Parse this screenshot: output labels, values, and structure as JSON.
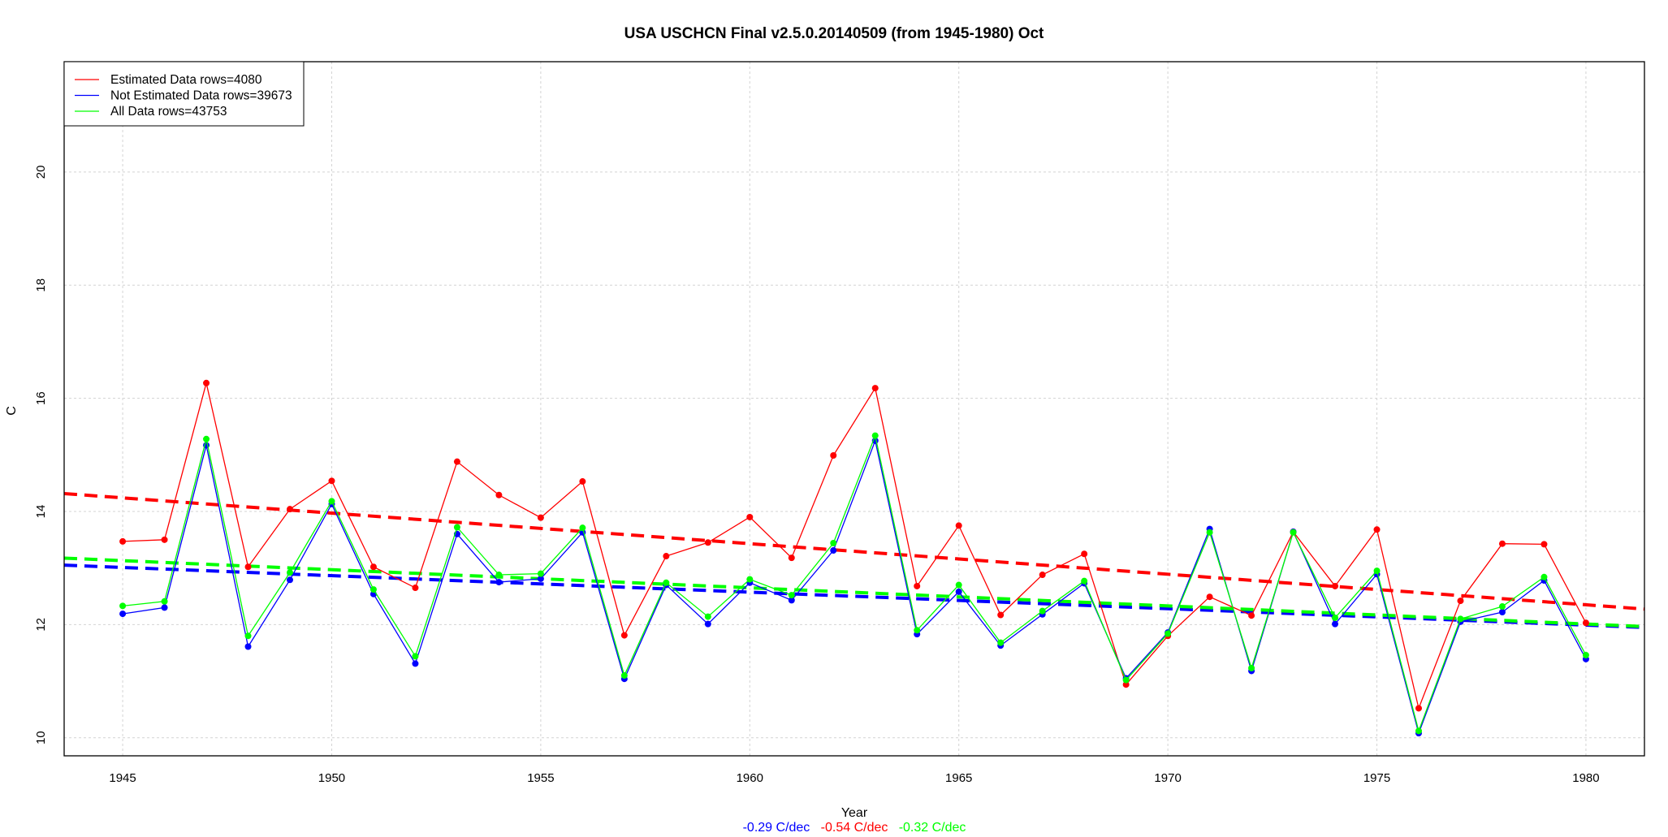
{
  "chart_data": {
    "type": "line",
    "title": "USA USCHCN Final v2.5.0.20140509 (from 1945-1980) Oct",
    "xlabel": "Year",
    "ylabel": "C",
    "xlim": [
      1943.6,
      1981.4
    ],
    "ylim": [
      9.68,
      21.95
    ],
    "xticks": [
      1945,
      1950,
      1955,
      1960,
      1965,
      1970,
      1975,
      1980
    ],
    "yticks": [
      10,
      12,
      14,
      16,
      18,
      20
    ],
    "grid": true,
    "legend_position": "top-left",
    "x": [
      1945,
      1946,
      1947,
      1948,
      1949,
      1950,
      1951,
      1952,
      1953,
      1954,
      1955,
      1956,
      1957,
      1958,
      1959,
      1960,
      1961,
      1962,
      1963,
      1964,
      1965,
      1966,
      1967,
      1968,
      1969,
      1970,
      1971,
      1972,
      1973,
      1974,
      1975,
      1976,
      1977,
      1978,
      1979,
      1980
    ],
    "series": [
      {
        "name": "Estimated Data rows=4080",
        "color": "#ff0000",
        "values": [
          13.47,
          13.5,
          16.27,
          13.02,
          14.04,
          14.54,
          13.02,
          12.65,
          14.88,
          14.29,
          13.89,
          14.53,
          11.81,
          13.21,
          13.45,
          13.9,
          13.18,
          14.99,
          16.18,
          12.68,
          13.75,
          12.17,
          12.88,
          13.25,
          10.94,
          11.8,
          12.49,
          12.16,
          13.64,
          12.68,
          13.68,
          10.52,
          12.42,
          13.43,
          13.42,
          12.03
        ],
        "trend": {
          "at_1945": 14.24,
          "at_1980": 12.35,
          "label": "-0.54 C/dec"
        }
      },
      {
        "name": "Not Estimated Data rows=39673",
        "color": "#0000ff",
        "values": [
          12.19,
          12.3,
          15.17,
          11.61,
          12.79,
          14.13,
          12.54,
          11.31,
          13.6,
          12.75,
          12.81,
          13.63,
          11.04,
          12.7,
          12.01,
          12.74,
          12.43,
          13.31,
          15.25,
          11.83,
          12.58,
          11.63,
          12.18,
          12.73,
          11.05,
          11.86,
          13.69,
          11.18,
          13.64,
          12.01,
          12.89,
          10.08,
          12.05,
          12.22,
          12.78,
          11.39
        ],
        "trend": {
          "at_1945": 13.01,
          "at_1980": 11.99,
          "label": "-0.29 C/dec"
        }
      },
      {
        "name": "All Data rows=43753",
        "color": "#00ff00",
        "values": [
          12.33,
          12.41,
          15.28,
          11.8,
          12.92,
          14.18,
          12.62,
          11.44,
          13.72,
          12.88,
          12.9,
          13.71,
          11.1,
          12.74,
          12.14,
          12.8,
          12.52,
          13.44,
          15.34,
          11.9,
          12.7,
          11.68,
          12.24,
          12.77,
          11.02,
          11.84,
          13.63,
          11.23,
          13.63,
          12.12,
          12.95,
          10.12,
          12.1,
          12.32,
          12.84,
          11.46
        ],
        "trend": {
          "at_1945": 13.13,
          "at_1980": 12.01,
          "label": "-0.32 C/dec"
        }
      }
    ],
    "draw_order": [
      0,
      1,
      2
    ],
    "subtitle_order": [
      1,
      0,
      2
    ]
  }
}
